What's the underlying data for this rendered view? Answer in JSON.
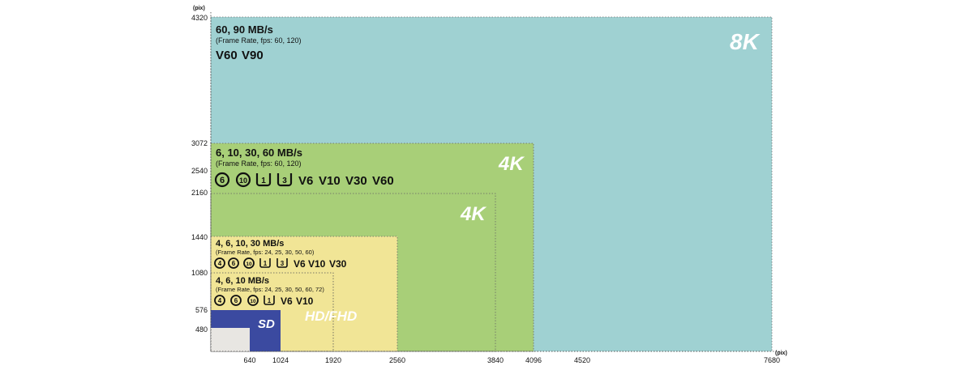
{
  "axes": {
    "y_unit": "(pix)",
    "x_unit": "(pix)",
    "y_ticks": [
      "4320",
      "3072",
      "2540",
      "2160",
      "1440",
      "1080",
      "576",
      "480"
    ],
    "x_ticks": [
      "640",
      "1024",
      "1920",
      "2560",
      "3840",
      "4096",
      "4520",
      "7680"
    ]
  },
  "regions": {
    "8k": {
      "label": "8K",
      "speeds": "60, 90 MB/s",
      "frame_rate": "(Frame Rate, fps: 60, 120)",
      "symbols": [
        "V60",
        "V90"
      ],
      "color": "#9fd1d2"
    },
    "4k_dci": {
      "label": "4K",
      "speeds": "6, 10, 30, 60 MB/s",
      "frame_rate": "(Frame Rate, fps: 60, 120)",
      "symbols": [
        "6",
        "10",
        "1",
        "3",
        "V6",
        "V10",
        "V30",
        "V60"
      ],
      "color": "#a8cf78"
    },
    "4k_uhd": {
      "label": "4K",
      "color": "#a8cf78"
    },
    "hd_fhd": {
      "label": "HD/FHD",
      "speeds_outer": "4, 6, 10, 30 MB/s",
      "frame_rate_outer": "(Frame Rate, fps: 24, 25, 30, 50, 60)",
      "symbols_outer": [
        "4",
        "6",
        "10",
        "1",
        "3",
        "V6",
        "V10",
        "V30"
      ],
      "speeds_inner": "4, 6, 10 MB/s",
      "frame_rate_inner": "(Frame Rate, fps: 24, 25, 30, 50, 60, 72)",
      "symbols_inner": [
        "4",
        "6",
        "10",
        "1",
        "V6",
        "V10"
      ],
      "color": "#f1e596"
    },
    "sd": {
      "label": "SD",
      "color": "#3b4aa0",
      "inner_color": "#e8e6e2"
    }
  }
}
